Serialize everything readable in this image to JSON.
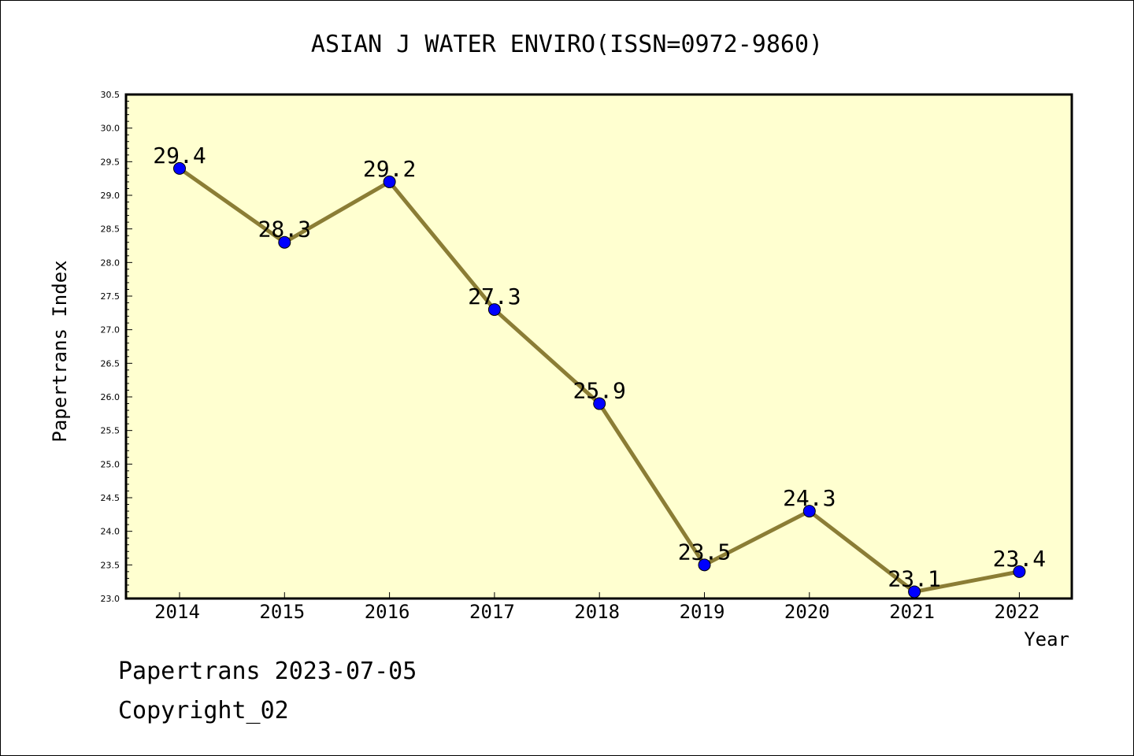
{
  "chart_data": {
    "type": "line",
    "title": "ASIAN J WATER ENVIRO(ISSN=0972-9860)",
    "xlabel": "Year",
    "ylabel": "Papertrans Index",
    "categories": [
      "2014",
      "2015",
      "2016",
      "2017",
      "2018",
      "2019",
      "2020",
      "2021",
      "2022"
    ],
    "values": [
      29.4,
      28.3,
      29.2,
      27.3,
      25.9,
      23.5,
      24.3,
      23.1,
      23.4
    ],
    "data_labels": [
      "29.4",
      "28.3",
      "29.2",
      "27.3",
      "25.9",
      "23.5",
      "24.3",
      "23.1",
      "23.4"
    ],
    "ylim": [
      23.0,
      30.5
    ],
    "y_ticks": [
      "23.0",
      "23.5",
      "24.0",
      "24.5",
      "25.0",
      "25.5",
      "26.0",
      "26.5",
      "27.0",
      "27.5",
      "28.0",
      "28.5",
      "29.0",
      "29.5",
      "30.0",
      "30.5"
    ],
    "grid": false,
    "legend": "none",
    "colors": {
      "plot_background": "#ffffd0",
      "line": "#8b7d35",
      "marker": "#0000ff"
    }
  },
  "footer": {
    "line1": "Papertrans 2023-07-05",
    "line2": "Copyright_02"
  }
}
